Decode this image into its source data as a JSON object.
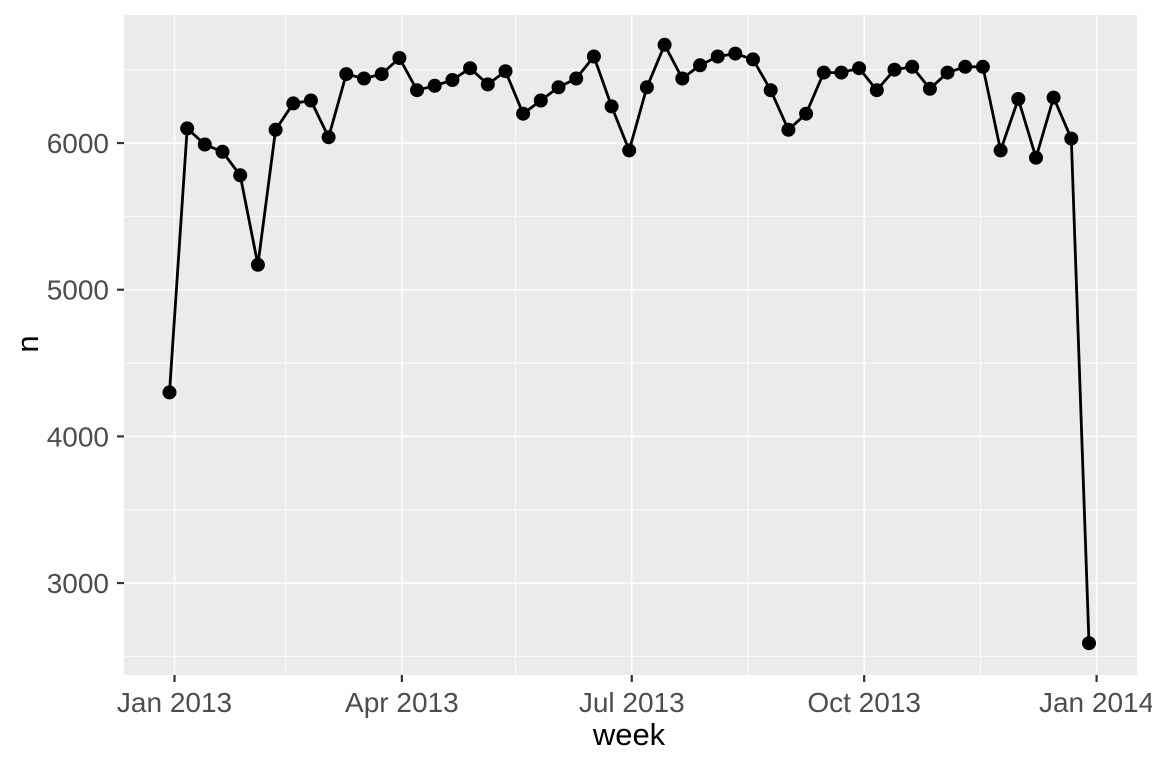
{
  "chart_data": {
    "type": "line",
    "title": "",
    "xlabel": "week",
    "ylabel": "n",
    "marker": "filled-circle",
    "legend": false,
    "grid": "major-and-minor",
    "x": [
      "2012-12-30",
      "2013-01-06",
      "2013-01-13",
      "2013-01-20",
      "2013-01-27",
      "2013-02-03",
      "2013-02-10",
      "2013-02-17",
      "2013-02-24",
      "2013-03-03",
      "2013-03-10",
      "2013-03-17",
      "2013-03-24",
      "2013-03-31",
      "2013-04-07",
      "2013-04-14",
      "2013-04-21",
      "2013-04-28",
      "2013-05-05",
      "2013-05-12",
      "2013-05-19",
      "2013-05-26",
      "2013-06-02",
      "2013-06-09",
      "2013-06-16",
      "2013-06-23",
      "2013-06-30",
      "2013-07-07",
      "2013-07-14",
      "2013-07-21",
      "2013-07-28",
      "2013-08-04",
      "2013-08-11",
      "2013-08-18",
      "2013-08-25",
      "2013-09-01",
      "2013-09-08",
      "2013-09-15",
      "2013-09-22",
      "2013-09-29",
      "2013-10-06",
      "2013-10-13",
      "2013-10-20",
      "2013-10-27",
      "2013-11-03",
      "2013-11-10",
      "2013-11-17",
      "2013-11-24",
      "2013-12-01",
      "2013-12-08",
      "2013-12-15",
      "2013-12-22",
      "2013-12-29"
    ],
    "values": [
      4300,
      6100,
      5990,
      5940,
      5780,
      5170,
      6090,
      6270,
      6290,
      6040,
      6470,
      6440,
      6470,
      6580,
      6360,
      6390,
      6430,
      6510,
      6400,
      6490,
      6200,
      6290,
      6380,
      6440,
      6590,
      6250,
      5950,
      6380,
      6670,
      6440,
      6530,
      6590,
      6610,
      6570,
      6360,
      6090,
      6200,
      6480,
      6480,
      6510,
      6360,
      6500,
      6520,
      6370,
      6480,
      6520,
      6520,
      5950,
      6300,
      5900,
      6310,
      6030,
      2590
    ],
    "x_major_ticks": [
      {
        "label": "Jan 2013",
        "date": "2013-01-01"
      },
      {
        "label": "Apr 2013",
        "date": "2013-04-01"
      },
      {
        "label": "Jul 2013",
        "date": "2013-07-01"
      },
      {
        "label": "Oct 2013",
        "date": "2013-10-01"
      },
      {
        "label": "Jan 2014",
        "date": "2014-01-01"
      }
    ],
    "x_minor_ticks": [
      "2013-02-14",
      "2013-05-16",
      "2013-08-16",
      "2013-11-16"
    ],
    "y_major_ticks": [
      {
        "label": "3000",
        "value": 3000
      },
      {
        "label": "4000",
        "value": 4000
      },
      {
        "label": "5000",
        "value": 5000
      },
      {
        "label": "6000",
        "value": 6000
      }
    ],
    "y_minor_ticks": [
      2500,
      3500,
      4500,
      5500,
      6500
    ],
    "xlim": [
      "2012-12-12",
      "2014-01-17"
    ],
    "ylim": [
      2373,
      6873
    ]
  },
  "style": {
    "page_bg": "#FFFFFF",
    "panel_bg": "#EBEBEB",
    "grid_color": "#FFFFFF",
    "line_color": "#000000",
    "point_color": "#000000",
    "axis_text_color": "#4D4D4D",
    "axis_title_color": "#000000",
    "tick_mark_color": "#333333"
  }
}
